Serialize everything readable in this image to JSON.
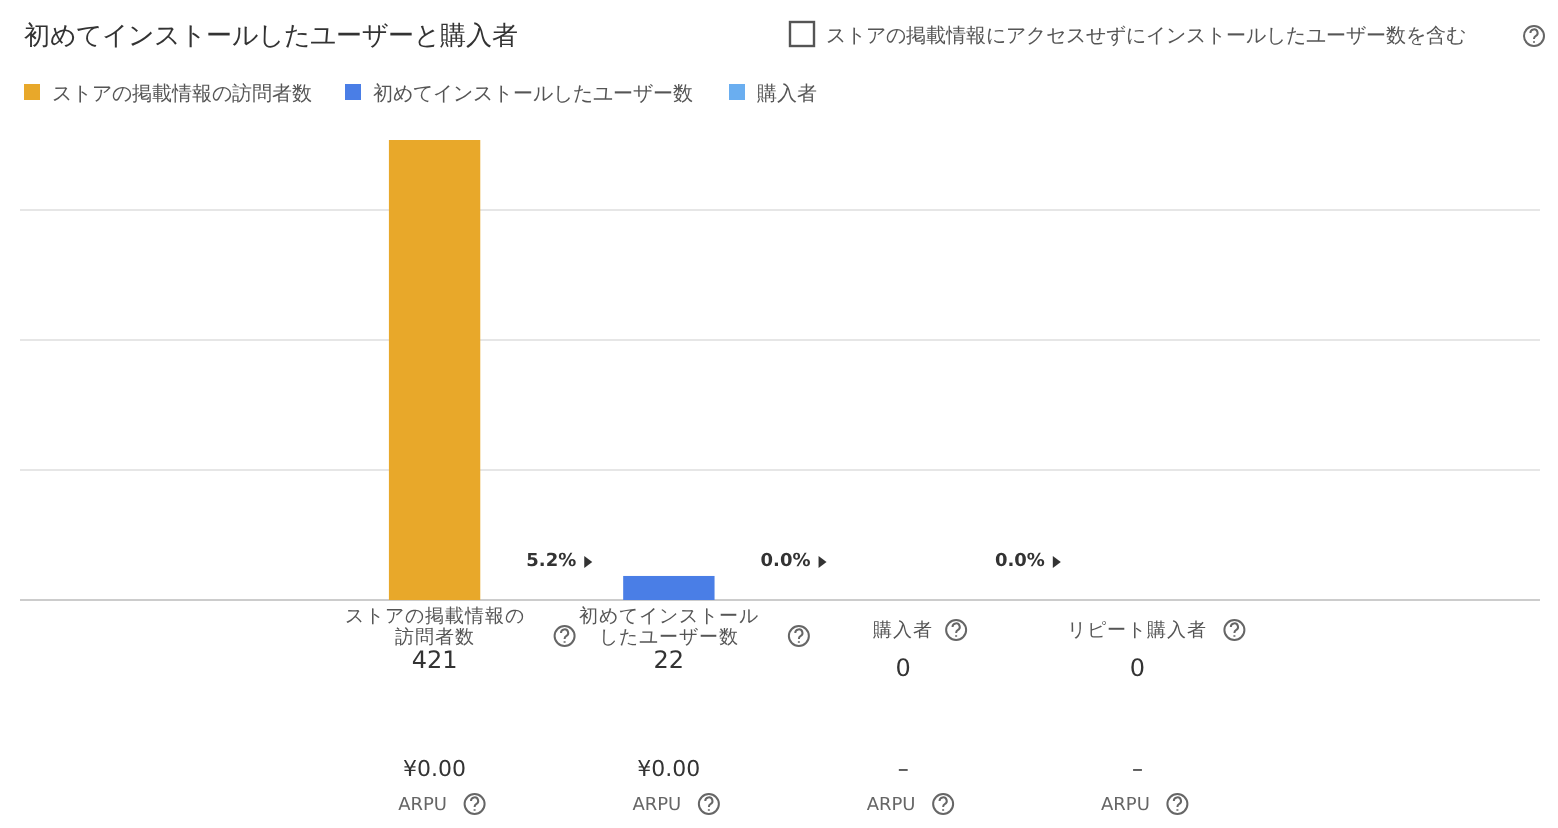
{
  "chart_data": {
    "type": "bar",
    "title": "初めてインストールしたユーザーと購入者",
    "categories": [
      "ストアの掲載情報の訪問者数",
      "初めてインストールしたユーザー数",
      "購入者",
      "リピート購入者"
    ],
    "series": [
      {
        "name": "ストアの掲載情報の訪問者数",
        "color": "#e8a82a",
        "x": [
          "ストアの掲載情報の訪問者数"
        ],
        "values": [
          421
        ]
      },
      {
        "name": "初めてインストールしたユーザー数",
        "color": "#4a7ee6",
        "x": [
          "初めてインストールしたユーザー数"
        ],
        "values": [
          22
        ]
      },
      {
        "name": "購入者",
        "color": "#6aaef0",
        "x": [
          "購入者",
          "リピート購入者"
        ],
        "values": [
          0,
          0
        ]
      }
    ],
    "grid": true,
    "legend": "top left",
    "data_labels": true,
    "annotations": [
      "ストアの掲載情報にアクセスせずにインストールしたユーザー数を含む",
      "5.2%",
      "0.0%",
      "0.0%",
      "¥0.00",
      "¥0.00",
      "–",
      "–",
      "ARPU",
      "ARPU",
      "ARPU",
      "ARPU"
    ]
  }
}
